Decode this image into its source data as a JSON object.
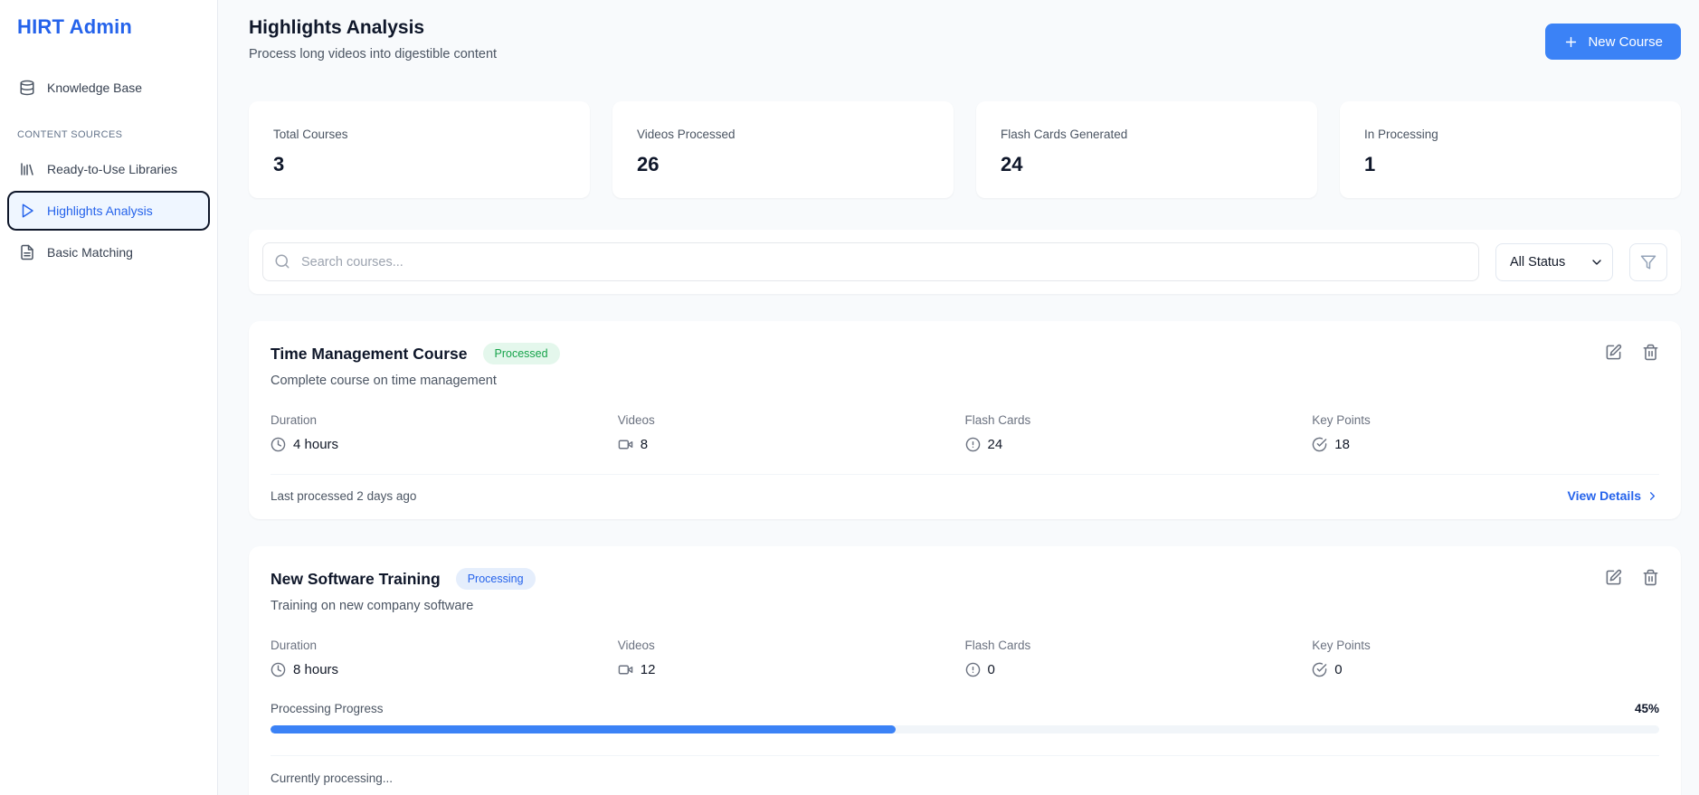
{
  "sidebar": {
    "brand": "HIRT Admin",
    "knowledge_base": {
      "label": "Knowledge Base",
      "icon": "database-icon"
    },
    "section": {
      "label": "CONTENT SOURCES",
      "items": [
        {
          "label": "Ready-to-Use Libraries",
          "icon": "library-icon",
          "selected": false
        },
        {
          "label": "Highlights Analysis",
          "icon": "play-icon",
          "selected": true
        },
        {
          "label": "Basic Matching",
          "icon": "file-text-icon",
          "selected": false
        }
      ]
    }
  },
  "header": {
    "title": "Highlights Analysis",
    "subtitle": "Process long videos into digestible content",
    "new_course_button": "New Course"
  },
  "stats": [
    {
      "label": "Total Courses",
      "value": "3"
    },
    {
      "label": "Videos Processed",
      "value": "26"
    },
    {
      "label": "Flash Cards Generated",
      "value": "24"
    },
    {
      "label": "In Processing",
      "value": "1"
    }
  ],
  "toolbar": {
    "search_placeholder": "Search courses...",
    "status_select": {
      "selected": "All Status"
    },
    "filter_icon": "funnel-icon"
  },
  "courses": [
    {
      "title": "Time Management Course",
      "status_badge": "Processed",
      "description": "Complete course on time management",
      "metrics": {
        "duration": {
          "label": "Duration",
          "value": "4 hours",
          "icon": "clock-icon"
        },
        "videos": {
          "label": "Videos",
          "value": "8",
          "icon": "video-icon"
        },
        "flash_cards": {
          "label": "Flash Cards",
          "value": "24",
          "icon": "alert-circle-icon"
        },
        "key_points": {
          "label": "Key Points",
          "value": "18",
          "icon": "check-circle-icon"
        }
      },
      "last_processed": "Last processed 2 days ago",
      "view_details": "View Details"
    },
    {
      "title": "New Software Training",
      "status_badge": "Processing",
      "description": "Training on new company software",
      "metrics": {
        "duration": {
          "label": "Duration",
          "value": "8 hours",
          "icon": "clock-icon"
        },
        "videos": {
          "label": "Videos",
          "value": "12",
          "icon": "video-icon"
        },
        "flash_cards": {
          "label": "Flash Cards",
          "value": "0",
          "icon": "alert-circle-icon"
        },
        "key_points": {
          "label": "Key Points",
          "value": "0",
          "icon": "check-circle-icon"
        }
      },
      "progress": {
        "label": "Processing Progress",
        "percent_text": "45%",
        "value": 45
      },
      "status_text": "Currently processing..."
    }
  ],
  "colors": {
    "accent_blue": "#2563eb",
    "button_blue": "#3b82f6",
    "progress_blue": "#3b82f6",
    "processed_green": "#16a34a",
    "page_background": "#f8fafc"
  }
}
